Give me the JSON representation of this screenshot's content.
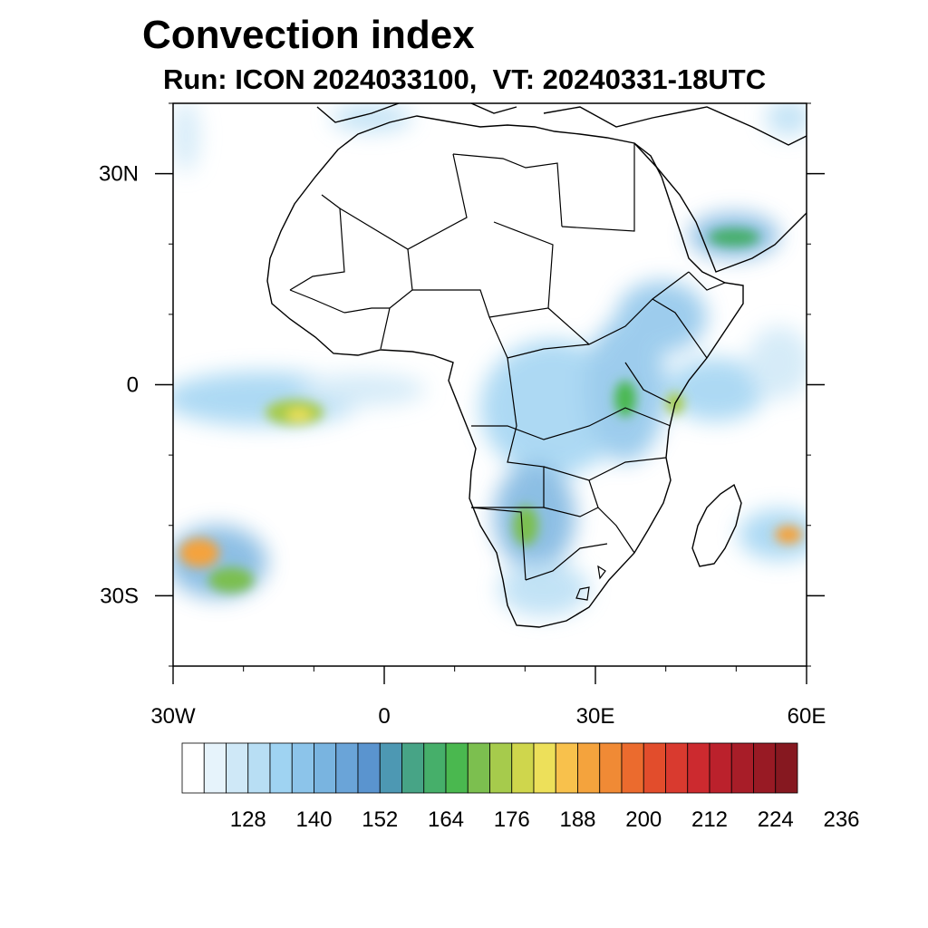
{
  "title": "Convection index",
  "subtitle": "Run: ICON 2024033100,  VT: 20240331-18UTC",
  "map": {
    "region": "Africa",
    "lon_range": [
      -30,
      60
    ],
    "lat_range": [
      -40,
      40
    ],
    "lat_ticks": [
      {
        "value": 30,
        "label": "30N"
      },
      {
        "value": 0,
        "label": "0"
      },
      {
        "value": -30,
        "label": "30S"
      }
    ],
    "lon_ticks": [
      {
        "value": -30,
        "label": "30W"
      },
      {
        "value": 0,
        "label": "0"
      },
      {
        "value": 30,
        "label": "30E"
      },
      {
        "value": 60,
        "label": "60E"
      }
    ],
    "convection_areas": [
      {
        "name": "atlantic-equatorial-cluster",
        "lon": -14,
        "lat": -4,
        "peak": 194
      },
      {
        "name": "south-atlantic-cluster",
        "lon": -24,
        "lat": -26,
        "peak": 206
      },
      {
        "name": "congo-basin",
        "lon": 23,
        "lat": -3,
        "peak": 176
      },
      {
        "name": "east-africa-highlands",
        "lon": 38,
        "lat": 6,
        "peak": 176
      },
      {
        "name": "southern-africa",
        "lon": 20,
        "lat": -22,
        "peak": 182
      },
      {
        "name": "arabian-peninsula",
        "lon": 45,
        "lat": 22,
        "peak": 176
      },
      {
        "name": "southwest-indian-ocean",
        "lon": 56,
        "lat": -22,
        "peak": 206
      }
    ]
  },
  "colorbar": {
    "colors": [
      "#ffffff",
      "#e6f3fb",
      "#cfe8f7",
      "#b8def4",
      "#9fd3f2",
      "#8cc4ea",
      "#79b4e0",
      "#6aa4d8",
      "#5a94cf",
      "#4d98b3",
      "#47a486",
      "#46af6a",
      "#4ab84f",
      "#7cbf4f",
      "#a6cb4c",
      "#cfd64c",
      "#ede05a",
      "#f8c14c",
      "#f4a33d",
      "#f08a35",
      "#eb6b2e",
      "#e24d2c",
      "#d93a2f",
      "#cc2a2f",
      "#bb212c",
      "#a81d28",
      "#981a24",
      "#861820"
    ],
    "tick_labels": [
      "128",
      "140",
      "152",
      "164",
      "176",
      "188",
      "200",
      "212",
      "224",
      "236"
    ]
  }
}
